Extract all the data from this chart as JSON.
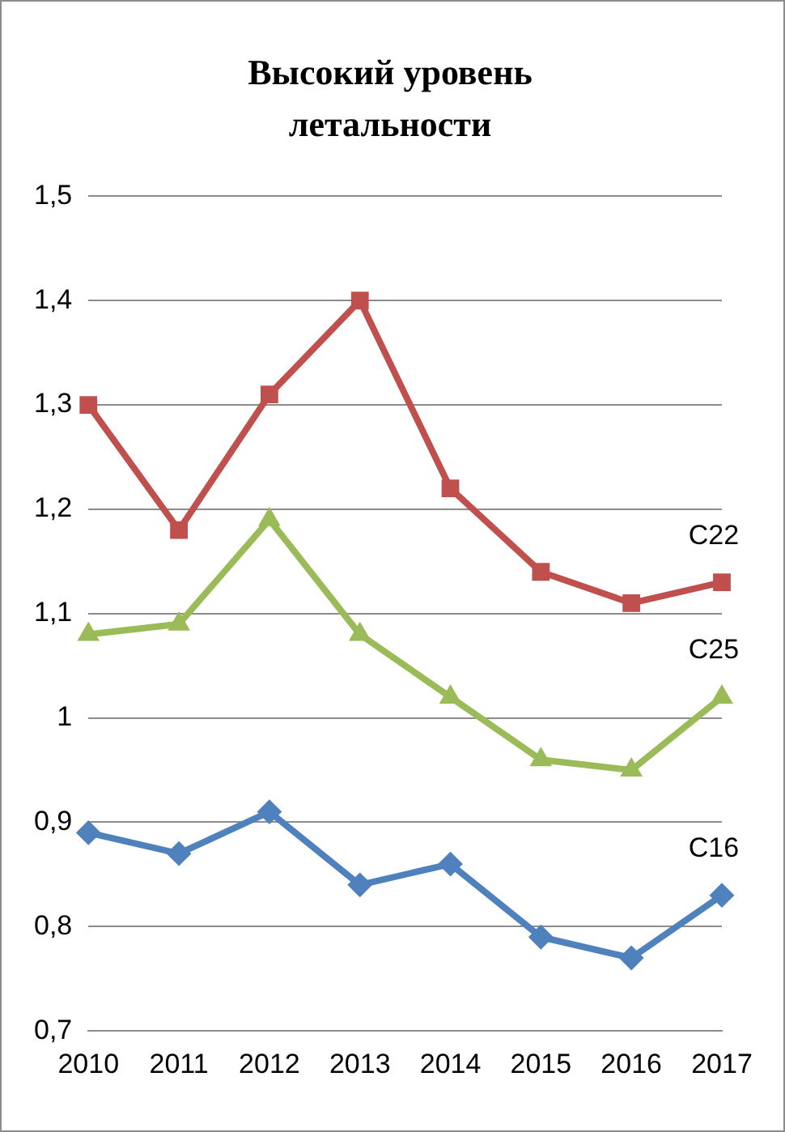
{
  "chart_data": {
    "type": "line",
    "title": "Высокий уровень летальности",
    "categories": [
      "2010",
      "2011",
      "2012",
      "2013",
      "2014",
      "2015",
      "2016",
      "2017"
    ],
    "series": [
      {
        "name": "C22",
        "color": "#c0504d",
        "marker": "square",
        "values": [
          1.3,
          1.18,
          1.31,
          1.4,
          1.22,
          1.14,
          1.11,
          1.13
        ]
      },
      {
        "name": "C25",
        "color": "#9bbb59",
        "marker": "triangle",
        "values": [
          1.08,
          1.09,
          1.19,
          1.08,
          1.02,
          0.96,
          0.95,
          1.02
        ]
      },
      {
        "name": "C16",
        "color": "#4f81bd",
        "marker": "diamond",
        "values": [
          0.89,
          0.87,
          0.91,
          0.84,
          0.86,
          0.79,
          0.77,
          0.83
        ]
      }
    ],
    "ylim": [
      0.7,
      1.5
    ],
    "yticks": [
      {
        "value": 0.7,
        "label": "0,7"
      },
      {
        "value": 0.8,
        "label": "0,8"
      },
      {
        "value": 0.9,
        "label": "0,9"
      },
      1,
      {
        "value": 1.1,
        "label": "1,1"
      },
      {
        "value": 1.2,
        "label": "1,2"
      },
      {
        "value": 1.3,
        "label": "1,3"
      },
      {
        "value": 1.4,
        "label": "1,4"
      },
      {
        "value": 1.5,
        "label": "1,5"
      }
    ],
    "grid": "y",
    "legend": false,
    "line_style": "solid"
  }
}
